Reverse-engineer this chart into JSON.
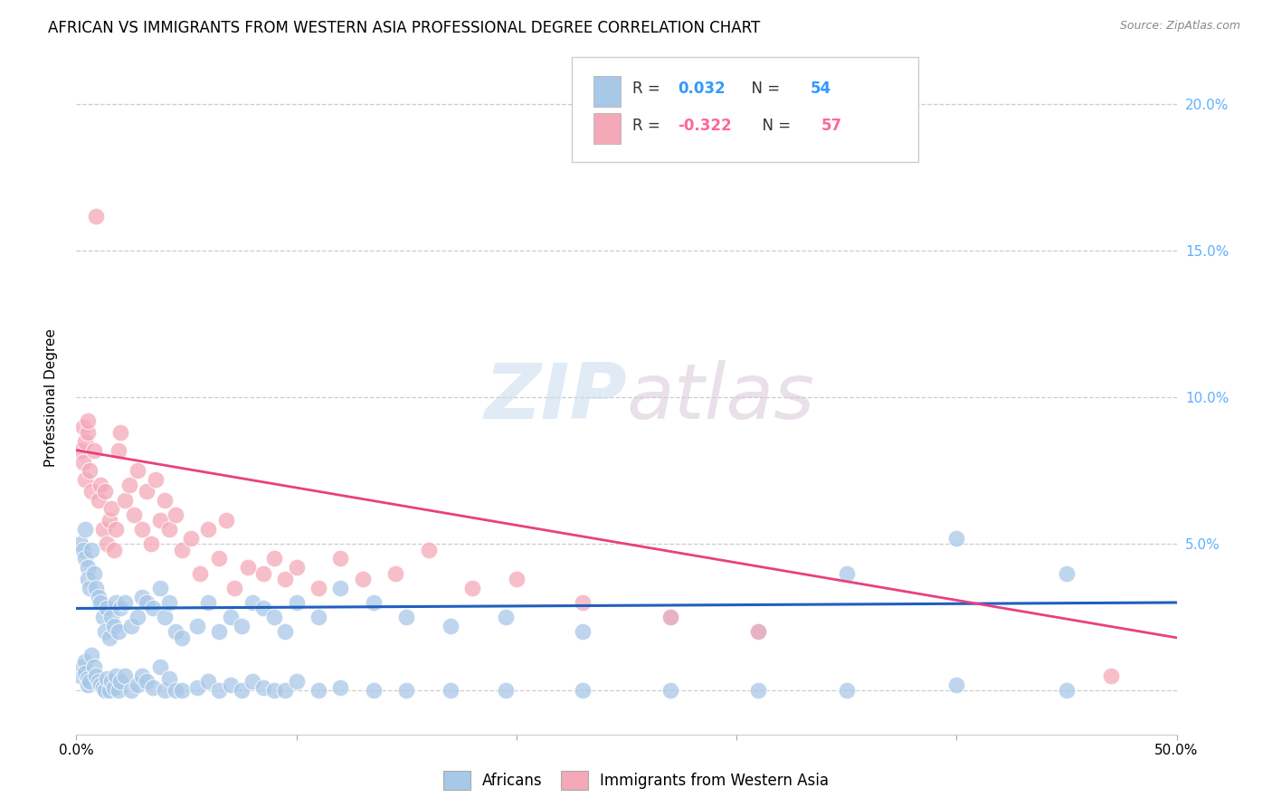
{
  "title": "AFRICAN VS IMMIGRANTS FROM WESTERN ASIA PROFESSIONAL DEGREE CORRELATION CHART",
  "source": "Source: ZipAtlas.com",
  "ylabel": "Professional Degree",
  "xlim": [
    0.0,
    0.5
  ],
  "ylim": [
    -0.015,
    0.215
  ],
  "yticks": [
    0.0,
    0.05,
    0.1,
    0.15,
    0.2
  ],
  "xticks": [
    0.0,
    0.1,
    0.2,
    0.3,
    0.4,
    0.5
  ],
  "blue_color": "#A8C8E8",
  "pink_color": "#F4A8B8",
  "blue_line_color": "#2060C0",
  "pink_line_color": "#E84080",
  "right_axis_color": "#60B0FF",
  "africans_x": [
    0.002,
    0.003,
    0.004,
    0.004,
    0.005,
    0.005,
    0.006,
    0.007,
    0.008,
    0.009,
    0.01,
    0.011,
    0.012,
    0.013,
    0.014,
    0.015,
    0.016,
    0.017,
    0.018,
    0.019,
    0.02,
    0.022,
    0.025,
    0.028,
    0.03,
    0.032,
    0.035,
    0.038,
    0.04,
    0.042,
    0.045,
    0.048,
    0.055,
    0.06,
    0.065,
    0.07,
    0.075,
    0.08,
    0.085,
    0.09,
    0.095,
    0.1,
    0.11,
    0.12,
    0.135,
    0.15,
    0.17,
    0.195,
    0.23,
    0.27,
    0.31,
    0.35,
    0.4,
    0.45
  ],
  "africans_y": [
    0.05,
    0.048,
    0.055,
    0.045,
    0.042,
    0.038,
    0.035,
    0.048,
    0.04,
    0.035,
    0.032,
    0.03,
    0.025,
    0.02,
    0.028,
    0.018,
    0.025,
    0.022,
    0.03,
    0.02,
    0.028,
    0.03,
    0.022,
    0.025,
    0.032,
    0.03,
    0.028,
    0.035,
    0.025,
    0.03,
    0.02,
    0.018,
    0.022,
    0.03,
    0.02,
    0.025,
    0.022,
    0.03,
    0.028,
    0.025,
    0.02,
    0.03,
    0.025,
    0.035,
    0.03,
    0.025,
    0.022,
    0.025,
    0.02,
    0.025,
    0.02,
    0.04,
    0.052,
    0.04
  ],
  "africans_y_low": [
    0.005,
    0.008,
    0.01,
    0.006,
    0.004,
    0.002,
    0.003,
    0.012,
    0.008,
    0.005,
    0.003,
    0.002,
    0.001,
    0.0,
    0.004,
    0.0,
    0.003,
    0.001,
    0.005,
    0.0,
    0.003,
    0.005,
    0.0,
    0.002,
    0.005,
    0.003,
    0.001,
    0.008,
    0.0,
    0.004,
    0.0,
    0.0,
    0.001,
    0.003,
    0.0,
    0.002,
    0.0,
    0.003,
    0.001,
    0.0,
    0.0,
    0.003,
    0.0,
    0.001,
    0.0,
    0.0,
    0.0,
    0.0,
    0.0,
    0.0,
    0.0,
    0.0,
    0.002,
    0.0
  ],
  "western_asia_x": [
    0.002,
    0.003,
    0.003,
    0.004,
    0.004,
    0.005,
    0.005,
    0.006,
    0.007,
    0.008,
    0.009,
    0.01,
    0.011,
    0.012,
    0.013,
    0.014,
    0.015,
    0.016,
    0.017,
    0.018,
    0.019,
    0.02,
    0.022,
    0.024,
    0.026,
    0.028,
    0.03,
    0.032,
    0.034,
    0.036,
    0.038,
    0.04,
    0.042,
    0.045,
    0.048,
    0.052,
    0.056,
    0.06,
    0.065,
    0.068,
    0.072,
    0.078,
    0.085,
    0.09,
    0.095,
    0.1,
    0.11,
    0.12,
    0.13,
    0.145,
    0.16,
    0.18,
    0.2,
    0.23,
    0.27,
    0.31,
    0.47
  ],
  "western_asia_y": [
    0.082,
    0.09,
    0.078,
    0.085,
    0.072,
    0.088,
    0.092,
    0.075,
    0.068,
    0.082,
    0.162,
    0.065,
    0.07,
    0.055,
    0.068,
    0.05,
    0.058,
    0.062,
    0.048,
    0.055,
    0.082,
    0.088,
    0.065,
    0.07,
    0.06,
    0.075,
    0.055,
    0.068,
    0.05,
    0.072,
    0.058,
    0.065,
    0.055,
    0.06,
    0.048,
    0.052,
    0.04,
    0.055,
    0.045,
    0.058,
    0.035,
    0.042,
    0.04,
    0.045,
    0.038,
    0.042,
    0.035,
    0.045,
    0.038,
    0.04,
    0.048,
    0.035,
    0.038,
    0.03,
    0.025,
    0.02,
    0.005
  ],
  "af_trend_x0": 0.0,
  "af_trend_x1": 0.5,
  "af_trend_y0": 0.028,
  "af_trend_y1": 0.03,
  "wa_trend_x0": 0.0,
  "wa_trend_x1": 0.5,
  "wa_trend_y0": 0.082,
  "wa_trend_y1": 0.018
}
